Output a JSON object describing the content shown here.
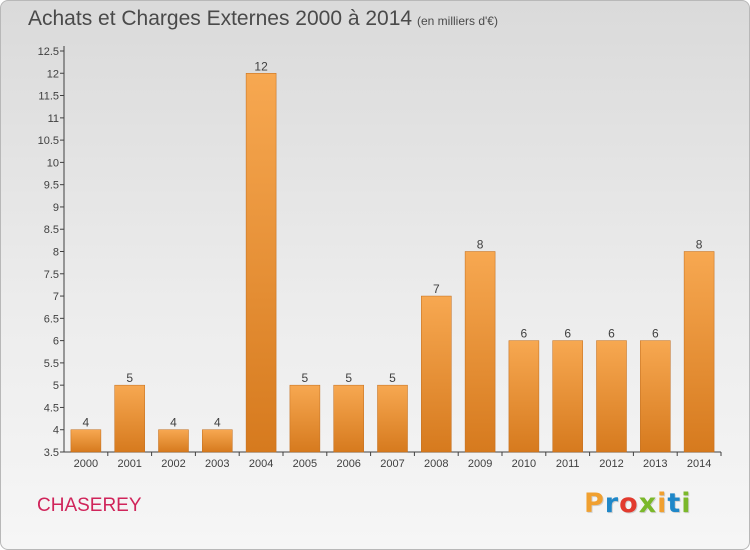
{
  "header": {
    "title": "Achats et Charges Externes 2000 à 2014",
    "subtitle": "(en milliers d'€)"
  },
  "footer": {
    "commune": "CHASEREY",
    "brand_letters": [
      "P",
      "r",
      "o",
      "x",
      "i",
      "t",
      "i"
    ],
    "brand_colors": [
      "#f0a030",
      "#1f87c8",
      "#e23a2e",
      "#7bb82a",
      "#f0a030",
      "#1f87c8",
      "#7bb82a"
    ]
  },
  "chart_data": {
    "type": "bar",
    "categories": [
      "2000",
      "2001",
      "2002",
      "2003",
      "2004",
      "2005",
      "2006",
      "2007",
      "2008",
      "2009",
      "2010",
      "2011",
      "2012",
      "2013",
      "2014"
    ],
    "values": [
      4,
      5,
      4,
      4,
      12,
      5,
      5,
      5,
      7,
      8,
      6,
      6,
      6,
      6,
      8
    ],
    "data_labels": [
      "4",
      "5",
      "4",
      "4",
      "12",
      "5",
      "5",
      "5",
      "7",
      "8",
      "6",
      "6",
      "6",
      "6",
      "8"
    ],
    "y_ticks": [
      "3.5",
      "4",
      "4.5",
      "5",
      "5.5",
      "6",
      "6.5",
      "7",
      "7.5",
      "8",
      "8.5",
      "9",
      "9.5",
      "10",
      "10.5",
      "11",
      "11.5",
      "12",
      "12.5"
    ],
    "ylim": [
      3.5,
      12.5
    ],
    "grid": false,
    "colors": {
      "bar_top": "#f7a851",
      "bar_bottom": "#d67a1e",
      "bar_edge": "#c06a18",
      "axis": "#404040",
      "text": "#404040"
    }
  }
}
